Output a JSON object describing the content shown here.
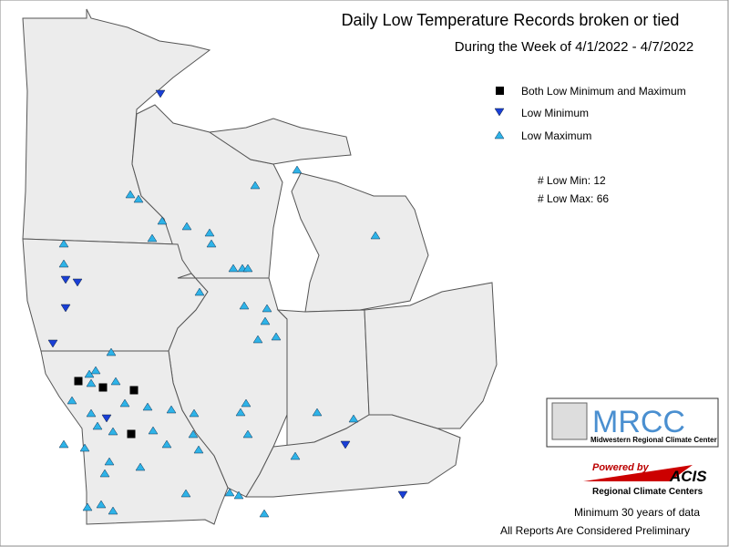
{
  "header": {
    "title": "Daily Low Temperature Records broken or tied",
    "subtitle": "During the Week of 4/1/2022 - 4/7/2022"
  },
  "legend": {
    "items": [
      "Both Low Minimum and Maximum",
      "Low Minimum",
      "Low Maximum"
    ]
  },
  "counts": [
    "# Low Min: 12",
    "# Low Max: 66"
  ],
  "logos": {
    "mrcc": "MRCC",
    "mrcc_name": "Midwestern Regional Climate Center",
    "powered": "Powered by",
    "acis": "ACIS",
    "rcc": "Regional Climate Centers"
  },
  "footer": [
    "Minimum 30 years of data",
    "All Reports Are Considered Preliminary"
  ]
}
